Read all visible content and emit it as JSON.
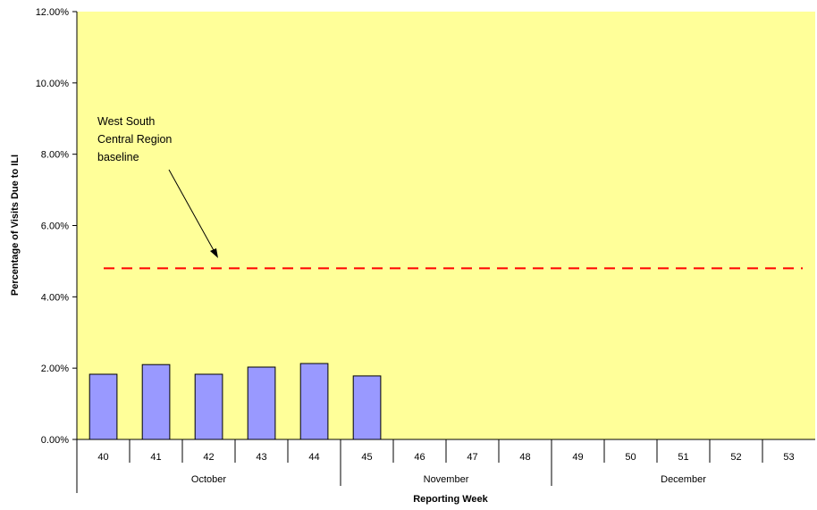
{
  "chart_data": {
    "type": "bar",
    "ylabel": "Percentage of Visits Due to ILI",
    "xlabel": "Reporting Week",
    "ylim": [
      0,
      12
    ],
    "yticks": [
      "0.00%",
      "2.00%",
      "4.00%",
      "6.00%",
      "8.00%",
      "10.00%",
      "12.00%"
    ],
    "categories": [
      "40",
      "41",
      "42",
      "43",
      "44",
      "45",
      "46",
      "47",
      "48",
      "49",
      "50",
      "51",
      "52",
      "53"
    ],
    "values": [
      1.83,
      2.1,
      1.83,
      2.03,
      2.13,
      1.78,
      null,
      null,
      null,
      null,
      null,
      null,
      null,
      null
    ],
    "months": [
      {
        "label": "October",
        "from": 0,
        "to": 4
      },
      {
        "label": "November",
        "from": 5,
        "to": 8
      },
      {
        "label": "December",
        "from": 9,
        "to": 13
      }
    ],
    "baseline": {
      "value": 4.8,
      "color": "#ff0000",
      "style": "dashed"
    },
    "annotation": [
      "West South",
      "Central Region",
      "baseline"
    ],
    "grid": false,
    "colors": {
      "plot_background": "#ffff99",
      "bar_fill": "#9999ff",
      "bar_stroke": "#000000"
    }
  }
}
